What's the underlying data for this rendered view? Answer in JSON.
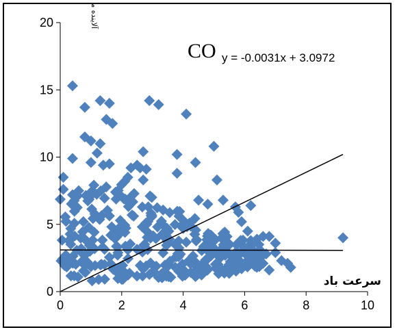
{
  "chart_data": {
    "type": "scatter",
    "title": "CO",
    "equation": "y = -0.0031x + 3.0972",
    "xlabel": "سرعت باد",
    "ylabel": "آلاینده مونواکسیدکربن",
    "xlim": [
      0,
      10
    ],
    "ylim": [
      0,
      20
    ],
    "xticks": [
      0,
      2,
      4,
      6,
      8,
      10
    ],
    "yticks": [
      0,
      5,
      10,
      15,
      20
    ],
    "grid": false,
    "marker_color": "#4F81BD",
    "line_color": "#000000",
    "trendline": {
      "slope": -0.0031,
      "intercept": 3.0972,
      "x": [
        0,
        9.2
      ]
    },
    "diagonal_line": {
      "x": [
        0,
        9.2
      ],
      "y": [
        0,
        10.2
      ]
    },
    "points": [
      [
        0.4,
        15.3
      ],
      [
        2.9,
        14.2
      ],
      [
        3.2,
        13.9
      ],
      [
        1.6,
        14
      ],
      [
        1.3,
        14.2
      ],
      [
        4.1,
        13.2
      ],
      [
        0.8,
        13.7
      ],
      [
        1.5,
        12.8
      ],
      [
        1.7,
        12.5
      ],
      [
        0.8,
        11.5
      ],
      [
        1,
        11.2
      ],
      [
        1.3,
        11
      ],
      [
        1.2,
        10.3
      ],
      [
        2.7,
        10.4
      ],
      [
        3.8,
        10.2
      ],
      [
        5,
        10.8
      ],
      [
        0.4,
        9.9
      ],
      [
        1,
        9.6
      ],
      [
        1.4,
        9.4
      ],
      [
        1.6,
        9.5
      ],
      [
        2.5,
        9.4
      ],
      [
        2.6,
        9.2
      ],
      [
        4.4,
        9.6
      ],
      [
        0.1,
        8.5
      ],
      [
        2.3,
        9.2
      ],
      [
        2.8,
        9.1
      ],
      [
        3.8,
        8.8
      ],
      [
        5.1,
        8.3
      ],
      [
        0.1,
        7.6
      ],
      [
        0.4,
        7.2
      ],
      [
        0.6,
        7.5
      ],
      [
        1.8,
        7.4
      ],
      [
        2.1,
        8.2
      ],
      [
        2.2,
        8.5
      ],
      [
        2.7,
        8.3
      ],
      [
        4.5,
        6.8
      ],
      [
        5.3,
        6.8
      ],
      [
        4.8,
        6.5
      ],
      [
        6.2,
        6.4
      ],
      [
        5.7,
        6.3
      ],
      [
        5.8,
        5.9
      ],
      [
        5.9,
        5.2
      ],
      [
        6.1,
        4.5
      ],
      [
        6.2,
        3.8
      ],
      [
        6.4,
        3.9
      ],
      [
        6.6,
        4.1
      ],
      [
        6.8,
        4.1
      ],
      [
        7,
        3.6
      ],
      [
        6.5,
        3.1
      ],
      [
        6.7,
        2.8
      ],
      [
        7,
        2.9
      ],
      [
        7.2,
        2.3
      ],
      [
        7.4,
        2.1
      ],
      [
        7.5,
        1.8
      ],
      [
        6.6,
        2.1
      ],
      [
        6.8,
        1.6
      ],
      [
        6.2,
        2.4
      ],
      [
        6.4,
        1.9
      ],
      [
        5.9,
        1.7
      ],
      [
        5.6,
        2.6
      ],
      [
        9.2,
        4
      ]
    ],
    "dense_cloud": [
      [
        0,
        1.0,
        7.5
      ],
      [
        0.5,
        0.8,
        7.8
      ],
      [
        1,
        0.8,
        8.2
      ],
      [
        1.5,
        0.9,
        8.0
      ],
      [
        2,
        0.9,
        7.5
      ],
      [
        2.5,
        0.9,
        7.2
      ],
      [
        3,
        1.0,
        6.8
      ],
      [
        3.5,
        1.0,
        6.2
      ],
      [
        4,
        1.1,
        5.6
      ],
      [
        4.5,
        1.2,
        5.0
      ],
      [
        5,
        1.3,
        4.5
      ],
      [
        5.5,
        1.5,
        4.0
      ],
      [
        6,
        1.8,
        3.5
      ]
    ]
  }
}
